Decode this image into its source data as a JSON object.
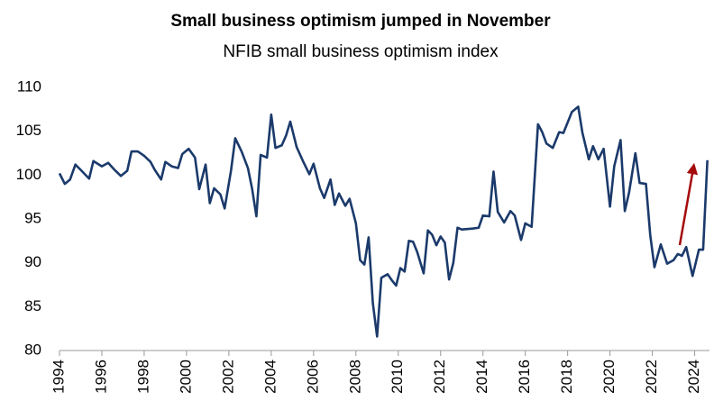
{
  "chart_data": {
    "type": "line",
    "title": "Small business optimism jumped in November",
    "subtitle": "NFIB small business optimism index",
    "x": [
      1994.0,
      1994.25,
      1994.5,
      1994.75,
      1995.0,
      1995.4,
      1995.6,
      1996.0,
      1996.3,
      1996.6,
      1996.9,
      1997.2,
      1997.4,
      1997.7,
      1998.0,
      1998.3,
      1998.5,
      1998.8,
      1999.0,
      1999.3,
      1999.6,
      1999.8,
      2000.1,
      2000.4,
      2000.6,
      2000.9,
      2001.1,
      2001.3,
      2001.6,
      2001.8,
      2002.1,
      2002.3,
      2002.6,
      2002.9,
      2003.1,
      2003.3,
      2003.5,
      2003.8,
      2004.0,
      2004.2,
      2004.5,
      2004.7,
      2004.9,
      2005.2,
      2005.5,
      2005.8,
      2006.0,
      2006.3,
      2006.5,
      2006.8,
      2007.0,
      2007.2,
      2007.5,
      2007.7,
      2008.0,
      2008.2,
      2008.4,
      2008.6,
      2008.8,
      2009.0,
      2009.2,
      2009.5,
      2009.7,
      2009.9,
      2010.1,
      2010.3,
      2010.5,
      2010.7,
      2010.9,
      2011.2,
      2011.4,
      2011.6,
      2011.8,
      2012.0,
      2012.2,
      2012.4,
      2012.6,
      2012.8,
      2013.0,
      2013.5,
      2013.8,
      2014.0,
      2014.3,
      2014.5,
      2014.7,
      2015.0,
      2015.3,
      2015.5,
      2015.8,
      2016.0,
      2016.3,
      2016.6,
      2016.8,
      2017.0,
      2017.3,
      2017.6,
      2017.8,
      2018.2,
      2018.5,
      2018.7,
      2019.0,
      2019.2,
      2019.45,
      2019.7,
      2020.0,
      2020.2,
      2020.5,
      2020.7,
      2020.9,
      2021.2,
      2021.4,
      2021.7,
      2021.9,
      2022.1,
      2022.4,
      2022.7,
      2023.0,
      2023.2,
      2023.4,
      2023.6,
      2023.9,
      2024.2,
      2024.4,
      2024.6
    ],
    "series": [
      {
        "name": "NFIB small business optimism index",
        "color": "#1b3a6b",
        "values": [
          100.2,
          99.0,
          99.5,
          101.2,
          100.6,
          99.6,
          101.6,
          101.0,
          101.4,
          100.6,
          99.9,
          100.5,
          102.7,
          102.7,
          102.2,
          101.5,
          100.6,
          99.5,
          101.5,
          101.0,
          100.8,
          102.4,
          103.0,
          102.0,
          98.4,
          101.2,
          96.8,
          98.5,
          97.8,
          96.2,
          100.5,
          104.2,
          102.7,
          100.8,
          98.4,
          95.3,
          102.3,
          102.0,
          106.9,
          103.1,
          103.4,
          104.5,
          106.1,
          103.2,
          101.6,
          100.1,
          101.3,
          98.5,
          97.4,
          99.5,
          96.6,
          97.9,
          96.5,
          97.3,
          94.5,
          90.3,
          89.8,
          92.9,
          85.4,
          81.6,
          88.3,
          88.7,
          88.0,
          87.4,
          89.4,
          89.0,
          92.5,
          92.4,
          91.2,
          88.8,
          93.7,
          93.2,
          92.0,
          93.0,
          92.3,
          88.1,
          90.0,
          94.0,
          93.8,
          93.9,
          94.0,
          95.4,
          95.3,
          100.4,
          95.8,
          94.6,
          95.9,
          95.4,
          92.6,
          94.5,
          94.1,
          105.8,
          104.9,
          103.6,
          103.1,
          104.9,
          104.8,
          107.2,
          107.8,
          104.8,
          101.8,
          103.3,
          101.8,
          103.0,
          96.4,
          101.0,
          104.0,
          95.9,
          98.0,
          102.5,
          99.1,
          99.0,
          93.2,
          89.5,
          92.1,
          89.9,
          90.3,
          91.0,
          90.8,
          91.8,
          88.5,
          91.5,
          91.5,
          101.7
        ]
      }
    ],
    "xlim": [
      1994,
      2024.7
    ],
    "xticks": [
      1994,
      1996,
      1998,
      2000,
      2002,
      2004,
      2006,
      2008,
      2010,
      2012,
      2014,
      2016,
      2018,
      2020,
      2022,
      2024
    ],
    "ylim": [
      80,
      110
    ],
    "yticks": [
      80,
      85,
      90,
      95,
      100,
      105,
      110
    ],
    "grid": false
  }
}
